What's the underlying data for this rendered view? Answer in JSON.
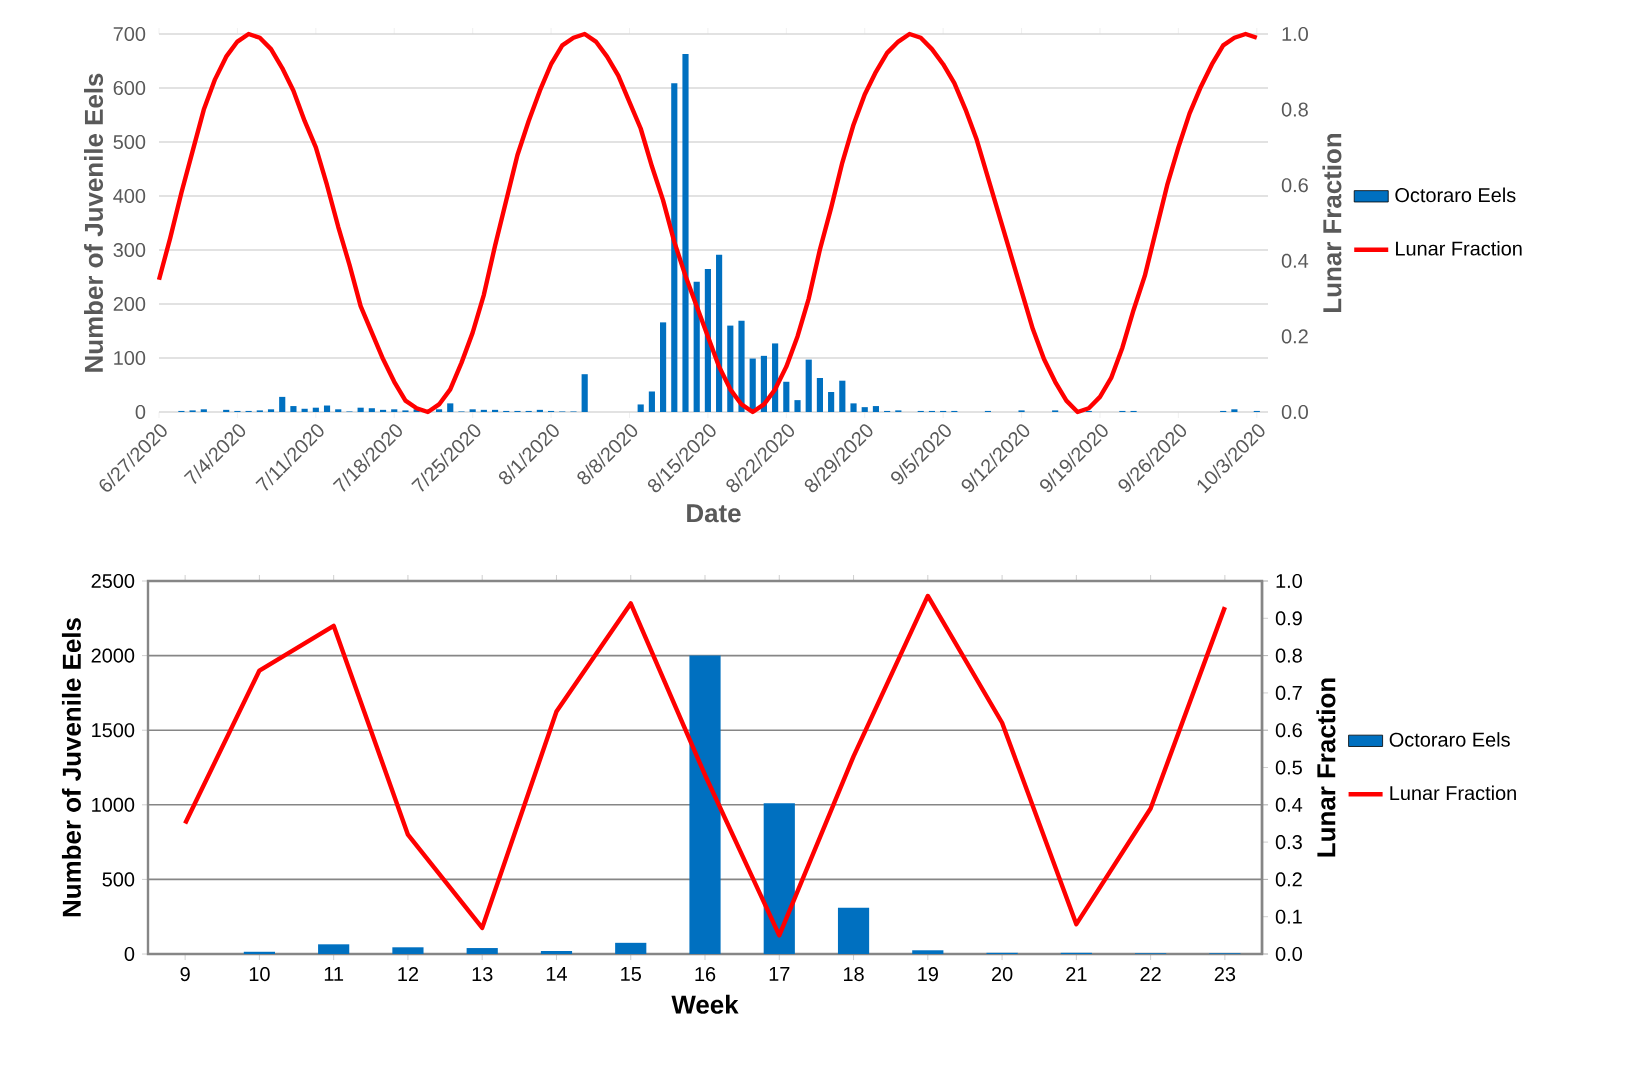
{
  "chart_data": [
    {
      "type": "bar",
      "xlabel": "Date",
      "ylabel": "Number of Juvenile Eels",
      "y2label": "Lunar Fraction",
      "x": [
        "2020-06-29",
        "2020-06-30",
        "2020-07-01",
        "2020-07-03",
        "2020-07-04",
        "2020-07-05",
        "2020-07-06",
        "2020-07-07",
        "2020-07-08",
        "2020-07-09",
        "2020-07-10",
        "2020-07-11",
        "2020-07-12",
        "2020-07-13",
        "2020-07-14",
        "2020-07-15",
        "2020-07-16",
        "2020-07-17",
        "2020-07-18",
        "2020-07-19",
        "2020-07-20",
        "2020-07-21",
        "2020-07-22",
        "2020-07-23",
        "2020-07-24",
        "2020-07-25",
        "2020-07-26",
        "2020-07-27",
        "2020-07-28",
        "2020-07-29",
        "2020-07-30",
        "2020-07-31",
        "2020-08-01",
        "2020-08-02",
        "2020-08-03",
        "2020-08-04",
        "2020-08-09",
        "2020-08-10",
        "2020-08-11",
        "2020-08-12",
        "2020-08-13",
        "2020-08-14",
        "2020-08-15",
        "2020-08-16",
        "2020-08-17",
        "2020-08-18",
        "2020-08-19",
        "2020-08-20",
        "2020-08-21",
        "2020-08-22",
        "2020-08-23",
        "2020-08-24",
        "2020-08-25",
        "2020-08-26",
        "2020-08-27",
        "2020-08-28",
        "2020-08-29",
        "2020-08-30",
        "2020-08-31",
        "2020-09-01",
        "2020-09-03",
        "2020-09-04",
        "2020-09-05",
        "2020-09-06",
        "2020-09-09",
        "2020-09-12",
        "2020-09-15",
        "2020-09-17",
        "2020-09-18",
        "2020-09-21",
        "2020-09-22",
        "2020-09-30",
        "2020-10-01",
        "2020-10-03"
      ],
      "series": [
        {
          "name": "Octoraro Eels",
          "color": "#0070c0",
          "values": [
            2,
            3,
            5,
            4,
            2,
            2,
            3,
            5,
            28,
            11,
            6,
            8,
            12,
            5,
            1,
            8,
            7,
            4,
            5,
            3,
            5,
            null,
            5,
            16,
            1,
            5,
            4,
            4,
            2,
            2,
            2,
            4,
            2,
            1,
            1,
            70,
            14,
            38,
            166,
            609,
            663,
            241,
            265,
            291,
            160,
            169,
            99,
            104,
            127,
            56,
            22,
            97,
            63,
            37,
            58,
            16,
            9,
            11,
            2,
            3,
            2,
            2,
            2,
            2,
            2,
            3,
            3,
            null,
            2,
            2,
            2,
            2,
            5,
            2
          ]
        },
        {
          "name": "Lunar Fraction",
          "type": "line",
          "axis": "y2",
          "color": "#ff0000",
          "x": [
            "2020-06-27",
            "2020-06-28",
            "2020-06-29",
            "2020-06-30",
            "2020-07-01",
            "2020-07-02",
            "2020-07-03",
            "2020-07-04",
            "2020-07-05",
            "2020-07-06",
            "2020-07-07",
            "2020-07-08",
            "2020-07-09",
            "2020-07-10",
            "2020-07-11",
            "2020-07-12",
            "2020-07-13",
            "2020-07-14",
            "2020-07-15",
            "2020-07-16",
            "2020-07-17",
            "2020-07-18",
            "2020-07-19",
            "2020-07-20",
            "2020-07-21",
            "2020-07-22",
            "2020-07-23",
            "2020-07-24",
            "2020-07-25",
            "2020-07-26",
            "2020-07-27",
            "2020-07-28",
            "2020-07-29",
            "2020-07-30",
            "2020-07-31",
            "2020-08-01",
            "2020-08-02",
            "2020-08-03",
            "2020-08-04",
            "2020-08-05",
            "2020-08-06",
            "2020-08-07",
            "2020-08-08",
            "2020-08-09",
            "2020-08-10",
            "2020-08-11",
            "2020-08-12",
            "2020-08-13",
            "2020-08-14",
            "2020-08-15",
            "2020-08-16",
            "2020-08-17",
            "2020-08-18",
            "2020-08-19",
            "2020-08-20",
            "2020-08-21",
            "2020-08-22",
            "2020-08-23",
            "2020-08-24",
            "2020-08-25",
            "2020-08-26",
            "2020-08-27",
            "2020-08-28",
            "2020-08-29",
            "2020-08-30",
            "2020-08-31",
            "2020-09-01",
            "2020-09-02",
            "2020-09-03",
            "2020-09-04",
            "2020-09-05",
            "2020-09-06",
            "2020-09-07",
            "2020-09-08",
            "2020-09-09",
            "2020-09-10",
            "2020-09-11",
            "2020-09-12",
            "2020-09-13",
            "2020-09-14",
            "2020-09-15",
            "2020-09-16",
            "2020-09-17",
            "2020-09-18",
            "2020-09-19",
            "2020-09-20",
            "2020-09-21",
            "2020-09-22",
            "2020-09-23",
            "2020-09-24",
            "2020-09-25",
            "2020-09-26",
            "2020-09-27",
            "2020-09-28",
            "2020-09-29",
            "2020-09-30",
            "2020-10-01",
            "2020-10-02",
            "2020-10-03"
          ],
          "values": [
            0.35,
            0.46,
            0.58,
            0.69,
            0.8,
            0.88,
            0.94,
            0.98,
            1.0,
            0.99,
            0.96,
            0.91,
            0.85,
            0.77,
            0.7,
            0.6,
            0.49,
            0.39,
            0.28,
            0.21,
            0.14,
            0.08,
            0.03,
            0.01,
            0.0,
            0.02,
            0.06,
            0.13,
            0.21,
            0.31,
            0.44,
            0.56,
            0.68,
            0.77,
            0.85,
            0.92,
            0.97,
            0.99,
            1.0,
            0.98,
            0.94,
            0.89,
            0.82,
            0.75,
            0.65,
            0.56,
            0.45,
            0.36,
            0.28,
            0.2,
            0.12,
            0.06,
            0.02,
            0.0,
            0.02,
            0.06,
            0.12,
            0.2,
            0.3,
            0.43,
            0.54,
            0.66,
            0.76,
            0.84,
            0.9,
            0.95,
            0.98,
            1.0,
            0.99,
            0.96,
            0.92,
            0.87,
            0.8,
            0.72,
            0.62,
            0.52,
            0.42,
            0.32,
            0.22,
            0.14,
            0.08,
            0.03,
            0.0,
            0.01,
            0.04,
            0.09,
            0.17,
            0.27,
            0.36,
            0.48,
            0.6,
            0.7,
            0.79,
            0.86,
            0.92,
            0.97,
            0.99,
            1.0,
            0.99
          ]
        }
      ],
      "xlim": [
        "2020-06-27",
        "2020-10-04"
      ],
      "xticks": [
        {
          "value": "2020-06-27",
          "label": "6/27/2020"
        },
        {
          "value": "2020-07-04",
          "label": "7/4/2020"
        },
        {
          "value": "2020-07-11",
          "label": "7/11/2020"
        },
        {
          "value": "2020-07-18",
          "label": "7/18/2020"
        },
        {
          "value": "2020-07-25",
          "label": "7/25/2020"
        },
        {
          "value": "2020-08-01",
          "label": "8/1/2020"
        },
        {
          "value": "2020-08-08",
          "label": "8/8/2020"
        },
        {
          "value": "2020-08-15",
          "label": "8/15/2020"
        },
        {
          "value": "2020-08-22",
          "label": "8/22/2020"
        },
        {
          "value": "2020-08-29",
          "label": "8/29/2020"
        },
        {
          "value": "2020-09-05",
          "label": "9/5/2020"
        },
        {
          "value": "2020-09-12",
          "label": "9/12/2020"
        },
        {
          "value": "2020-09-19",
          "label": "9/19/2020"
        },
        {
          "value": "2020-09-26",
          "label": "9/26/2020"
        },
        {
          "value": "2020-10-03",
          "label": "10/3/2020"
        }
      ],
      "ylim": [
        0,
        700
      ],
      "yticks": [
        0,
        100,
        200,
        300,
        400,
        500,
        600,
        700
      ],
      "y2lim": [
        0,
        1
      ],
      "y2ticks": [
        {
          "value": 0,
          "label": "0.0"
        },
        {
          "value": 0.2,
          "label": "0.2"
        },
        {
          "value": 0.4,
          "label": "0.4"
        },
        {
          "value": 0.6,
          "label": "0.6"
        },
        {
          "value": 0.8,
          "label": "0.8"
        },
        {
          "value": 1,
          "label": "1.0"
        }
      ],
      "grid": "y",
      "legend": "right"
    },
    {
      "type": "bar",
      "xlabel": "Week",
      "ylabel": "Number of Juvenile Eels",
      "y2label": "Lunar Fraction",
      "categories": [
        "9",
        "10",
        "11",
        "12",
        "13",
        "14",
        "15",
        "16",
        "17",
        "18",
        "19",
        "20",
        "21",
        "22",
        "23"
      ],
      "series": [
        {
          "name": "Octoraro Eels",
          "color": "#0070c0",
          "values": [
            0,
            15,
            65,
            45,
            40,
            20,
            75,
            2000,
            1010,
            310,
            25,
            8,
            8,
            5,
            5
          ]
        },
        {
          "name": "Lunar Fraction",
          "type": "line",
          "axis": "y2",
          "color": "#ff0000",
          "values": [
            0.35,
            0.76,
            0.88,
            0.32,
            0.07,
            0.65,
            0.94,
            0.48,
            0.05,
            0.53,
            0.96,
            0.62,
            0.08,
            0.39,
            0.93
          ]
        }
      ],
      "ylim": [
        0,
        2500
      ],
      "yticks": [
        0,
        500,
        1000,
        1500,
        2000,
        2500
      ],
      "y2lim": [
        0,
        1
      ],
      "y2ticks": [
        {
          "value": 0,
          "label": "0.0"
        },
        {
          "value": 0.1,
          "label": "0.1"
        },
        {
          "value": 0.2,
          "label": "0.2"
        },
        {
          "value": 0.3,
          "label": "0.3"
        },
        {
          "value": 0.4,
          "label": "0.4"
        },
        {
          "value": 0.5,
          "label": "0.5"
        },
        {
          "value": 0.6,
          "label": "0.6"
        },
        {
          "value": 0.7,
          "label": "0.7"
        },
        {
          "value": 0.8,
          "label": "0.8"
        },
        {
          "value": 0.9,
          "label": "0.9"
        },
        {
          "value": 1,
          "label": "1.0"
        }
      ],
      "grid": "y",
      "legend": "right"
    }
  ]
}
